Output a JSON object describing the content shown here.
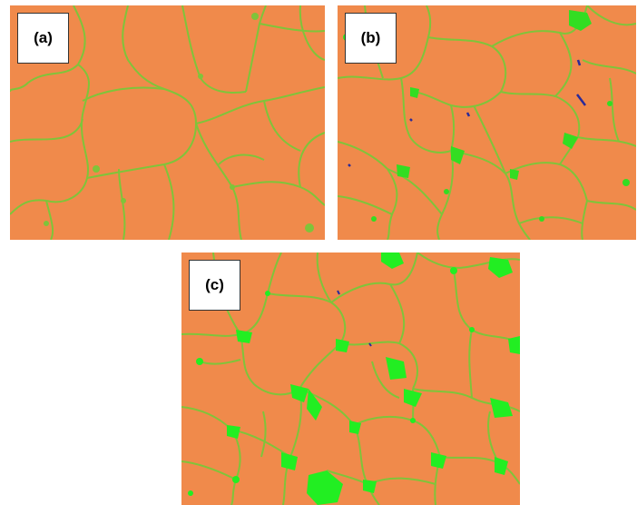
{
  "panels": [
    {
      "id": "a",
      "label": "(a)"
    },
    {
      "id": "b",
      "label": "(b)"
    },
    {
      "id": "c",
      "label": "(c)"
    }
  ],
  "colors": {
    "grain": "#f08a4b",
    "boundary": "#7fc43a",
    "pore": "#22ee22",
    "inclusion": "#2a2a9a",
    "background": "#ffffff"
  }
}
